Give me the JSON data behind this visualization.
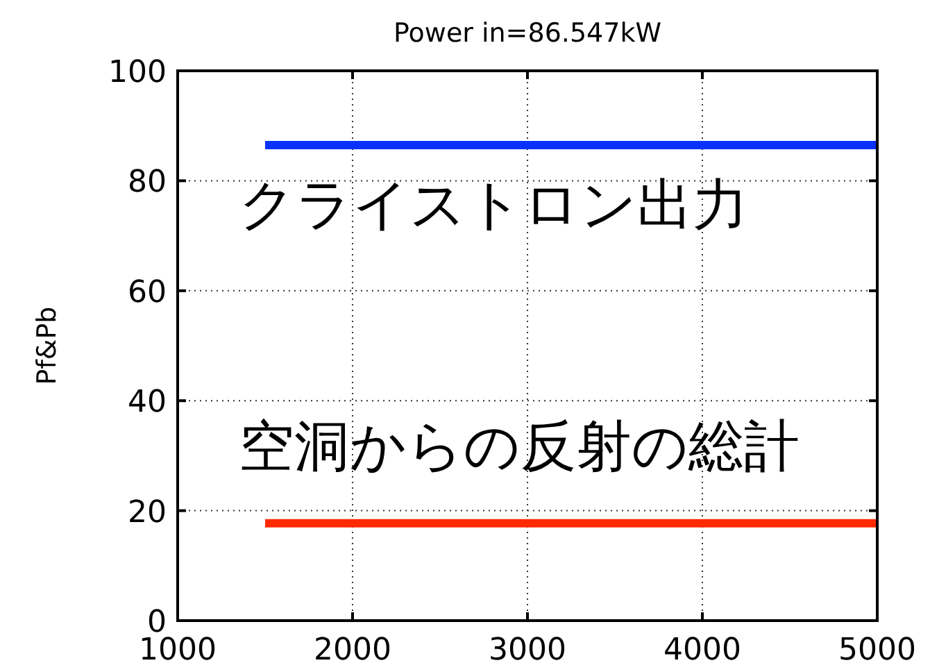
{
  "chart_data": {
    "type": "line",
    "title": "Power in=86.547kW",
    "ylabel": "Pf&Pb",
    "x": [
      1500,
      5000
    ],
    "series": [
      {
        "color": "#0a32ff",
        "values": [
          86.5,
          86.5
        ]
      },
      {
        "color": "#ff2a00",
        "values": [
          17.7,
          17.7
        ]
      }
    ],
    "xlim": [
      1000,
      5000
    ],
    "xticks": [
      1000,
      2000,
      3000,
      4000,
      5000
    ],
    "ylim": [
      0,
      100
    ],
    "yticks": [
      0,
      20,
      40,
      60,
      80,
      100
    ],
    "grid": true,
    "line_style": "solid",
    "marker": "none",
    "annotations": [
      "クライストロン出力",
      "空洞からの反射の総計"
    ]
  }
}
